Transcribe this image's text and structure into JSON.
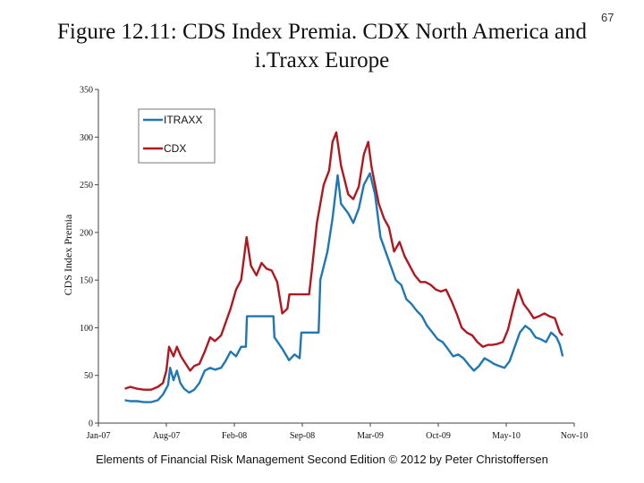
{
  "page": {
    "slide_number": "67"
  },
  "footer": {
    "text": "Elements of Financial Risk Management Second Edition © 2012  by Peter Christoffersen"
  },
  "chart_data": {
    "type": "line",
    "title": "Figure 12.11: CDS Index Premia. CDX North America and i.Traxx Europe",
    "ylabel": "CDS Index Premia",
    "xlabel": "",
    "ylim": [
      0,
      350
    ],
    "yticks": [
      0,
      50,
      100,
      150,
      200,
      250,
      300,
      350
    ],
    "xlim": [
      "2007-01",
      "2010-11"
    ],
    "xticks": [
      "Jan-07",
      "Aug-07",
      "Feb-08",
      "Sep-08",
      "Mar-09",
      "Oct-09",
      "May-10",
      "Nov-10"
    ],
    "grid": false,
    "legend_position": "top-left",
    "colors": {
      "ITRAXX": "#1f77b4",
      "CDX": "#b0171f"
    },
    "series": [
      {
        "name": "ITRAXX",
        "points": [
          [
            "2007-03-20",
            24
          ],
          [
            "2007-04-05",
            23
          ],
          [
            "2007-04-25",
            23
          ],
          [
            "2007-05-15",
            22
          ],
          [
            "2007-06-05",
            22
          ],
          [
            "2007-06-25",
            24
          ],
          [
            "2007-07-10",
            30
          ],
          [
            "2007-07-25",
            40
          ],
          [
            "2007-07-31",
            58
          ],
          [
            "2007-08-10",
            45
          ],
          [
            "2007-08-20",
            55
          ],
          [
            "2007-08-30",
            42
          ],
          [
            "2007-09-10",
            36
          ],
          [
            "2007-09-25",
            32
          ],
          [
            "2007-10-10",
            35
          ],
          [
            "2007-10-25",
            42
          ],
          [
            "2007-11-10",
            55
          ],
          [
            "2007-11-26",
            58
          ],
          [
            "2007-12-10",
            56
          ],
          [
            "2007-12-28",
            58
          ],
          [
            "2008-01-10",
            65
          ],
          [
            "2008-01-25",
            75
          ],
          [
            "2008-02-10",
            70
          ],
          [
            "2008-02-25",
            80
          ],
          [
            "2008-03-10",
            80
          ],
          [
            "2008-03-13",
            112
          ],
          [
            "2008-05-30",
            112
          ],
          [
            "2008-06-02",
            90
          ],
          [
            "2008-06-25",
            78
          ],
          [
            "2008-07-15",
            66
          ],
          [
            "2008-07-31",
            72
          ],
          [
            "2008-08-15",
            68
          ],
          [
            "2008-08-20",
            95
          ],
          [
            "2008-10-10",
            95
          ],
          [
            "2008-10-15",
            150
          ],
          [
            "2008-11-05",
            180
          ],
          [
            "2008-11-20",
            215
          ],
          [
            "2008-12-05",
            260
          ],
          [
            "2008-12-15",
            230
          ],
          [
            "2009-01-05",
            220
          ],
          [
            "2009-01-20",
            210
          ],
          [
            "2009-02-05",
            225
          ],
          [
            "2009-02-20",
            250
          ],
          [
            "2009-03-10",
            262
          ],
          [
            "2009-03-25",
            240
          ],
          [
            "2009-04-10",
            195
          ],
          [
            "2009-04-25",
            180
          ],
          [
            "2009-05-10",
            165
          ],
          [
            "2009-05-25",
            150
          ],
          [
            "2009-06-10",
            145
          ],
          [
            "2009-06-25",
            130
          ],
          [
            "2009-07-10",
            125
          ],
          [
            "2009-07-25",
            118
          ],
          [
            "2009-08-10",
            112
          ],
          [
            "2009-08-25",
            102
          ],
          [
            "2009-09-10",
            95
          ],
          [
            "2009-09-25",
            88
          ],
          [
            "2009-10-10",
            85
          ],
          [
            "2009-10-25",
            78
          ],
          [
            "2009-11-10",
            70
          ],
          [
            "2009-11-25",
            72
          ],
          [
            "2009-12-10",
            68
          ],
          [
            "2009-12-28",
            60
          ],
          [
            "2010-01-10",
            55
          ],
          [
            "2010-01-25",
            60
          ],
          [
            "2010-02-10",
            68
          ],
          [
            "2010-02-25",
            65
          ],
          [
            "2010-03-10",
            62
          ],
          [
            "2010-03-25",
            60
          ],
          [
            "2010-04-10",
            58
          ],
          [
            "2010-04-25",
            65
          ],
          [
            "2010-05-10",
            80
          ],
          [
            "2010-05-25",
            95
          ],
          [
            "2010-06-10",
            102
          ],
          [
            "2010-06-25",
            98
          ],
          [
            "2010-07-10",
            90
          ],
          [
            "2010-07-25",
            88
          ],
          [
            "2010-08-10",
            85
          ],
          [
            "2010-08-25",
            95
          ],
          [
            "2010-09-10",
            90
          ],
          [
            "2010-09-20",
            82
          ],
          [
            "2010-09-28",
            70
          ]
        ]
      },
      {
        "name": "CDX",
        "points": [
          [
            "2007-03-20",
            36
          ],
          [
            "2007-04-05",
            38
          ],
          [
            "2007-04-25",
            36
          ],
          [
            "2007-05-15",
            35
          ],
          [
            "2007-06-05",
            35
          ],
          [
            "2007-06-25",
            38
          ],
          [
            "2007-07-10",
            42
          ],
          [
            "2007-07-20",
            55
          ],
          [
            "2007-07-28",
            80
          ],
          [
            "2007-08-10",
            70
          ],
          [
            "2007-08-20",
            80
          ],
          [
            "2007-09-01",
            70
          ],
          [
            "2007-09-15",
            62
          ],
          [
            "2007-09-28",
            55
          ],
          [
            "2007-10-10",
            60
          ],
          [
            "2007-10-25",
            62
          ],
          [
            "2007-11-10",
            75
          ],
          [
            "2007-11-26",
            90
          ],
          [
            "2007-12-10",
            86
          ],
          [
            "2007-12-28",
            92
          ],
          [
            "2008-01-10",
            105
          ],
          [
            "2008-01-25",
            120
          ],
          [
            "2008-02-10",
            140
          ],
          [
            "2008-02-25",
            150
          ],
          [
            "2008-03-05",
            175
          ],
          [
            "2008-03-12",
            195
          ],
          [
            "2008-03-25",
            165
          ],
          [
            "2008-04-10",
            155
          ],
          [
            "2008-04-25",
            168
          ],
          [
            "2008-05-10",
            162
          ],
          [
            "2008-05-25",
            160
          ],
          [
            "2008-06-10",
            148
          ],
          [
            "2008-06-25",
            115
          ],
          [
            "2008-07-10",
            120
          ],
          [
            "2008-07-16",
            135
          ],
          [
            "2008-09-12",
            135
          ],
          [
            "2008-09-20",
            160
          ],
          [
            "2008-10-05",
            210
          ],
          [
            "2008-10-25",
            250
          ],
          [
            "2008-11-10",
            265
          ],
          [
            "2008-11-20",
            295
          ],
          [
            "2008-12-01",
            305
          ],
          [
            "2008-12-15",
            270
          ],
          [
            "2009-01-05",
            240
          ],
          [
            "2009-01-20",
            235
          ],
          [
            "2009-02-05",
            248
          ],
          [
            "2009-02-20",
            282
          ],
          [
            "2009-03-05",
            295
          ],
          [
            "2009-03-15",
            268
          ],
          [
            "2009-04-05",
            230
          ],
          [
            "2009-04-20",
            215
          ],
          [
            "2009-05-05",
            205
          ],
          [
            "2009-05-20",
            180
          ],
          [
            "2009-06-05",
            190
          ],
          [
            "2009-06-20",
            175
          ],
          [
            "2009-07-05",
            165
          ],
          [
            "2009-07-20",
            155
          ],
          [
            "2009-08-05",
            148
          ],
          [
            "2009-08-20",
            148
          ],
          [
            "2009-09-05",
            145
          ],
          [
            "2009-09-20",
            140
          ],
          [
            "2009-10-05",
            138
          ],
          [
            "2009-10-20",
            140
          ],
          [
            "2009-11-05",
            128
          ],
          [
            "2009-11-20",
            115
          ],
          [
            "2009-12-05",
            100
          ],
          [
            "2009-12-20",
            95
          ],
          [
            "2010-01-05",
            92
          ],
          [
            "2010-01-20",
            85
          ],
          [
            "2010-02-05",
            80
          ],
          [
            "2010-02-20",
            82
          ],
          [
            "2010-03-05",
            82
          ],
          [
            "2010-03-20",
            83
          ],
          [
            "2010-04-05",
            85
          ],
          [
            "2010-04-20",
            98
          ],
          [
            "2010-05-05",
            120
          ],
          [
            "2010-05-20",
            140
          ],
          [
            "2010-06-05",
            125
          ],
          [
            "2010-06-20",
            118
          ],
          [
            "2010-07-05",
            110
          ],
          [
            "2010-07-20",
            112
          ],
          [
            "2010-08-05",
            115
          ],
          [
            "2010-08-20",
            112
          ],
          [
            "2010-09-05",
            110
          ],
          [
            "2010-09-20",
            95
          ],
          [
            "2010-09-28",
            92
          ]
        ]
      }
    ]
  }
}
